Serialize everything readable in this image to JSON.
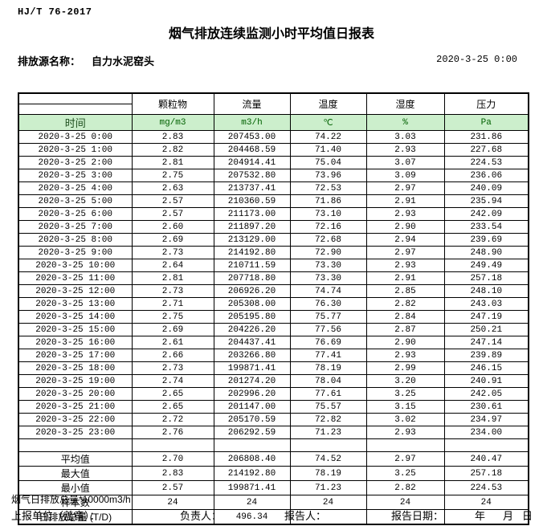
{
  "page": {
    "standard_code": "HJ/T  76-2017",
    "title": "烟气排放连续监测小时平均值日报表",
    "source_label": "排放源名称：",
    "source_name": "自力水泥窑头",
    "datetime": "2020-3-25 0:00"
  },
  "colors": {
    "units_row_bg": "#ccefcc",
    "units_row_text": "#006100",
    "border": "#000000"
  },
  "table": {
    "time_header": "时间",
    "columns": [
      {
        "label": "颗粒物",
        "unit": "mg/m3"
      },
      {
        "label": "流量",
        "unit": "m3/h"
      },
      {
        "label": "温度",
        "unit": "℃"
      },
      {
        "label": "湿度",
        "unit": "%"
      },
      {
        "label": "压力",
        "unit": "Pa"
      }
    ],
    "rows": [
      {
        "time": "2020-3-25 0:00",
        "values": [
          "2.83",
          "207453.00",
          "74.22",
          "3.03",
          "231.86"
        ]
      },
      {
        "time": "2020-3-25 1:00",
        "values": [
          "2.82",
          "204468.59",
          "71.40",
          "2.93",
          "227.68"
        ]
      },
      {
        "time": "2020-3-25 2:00",
        "values": [
          "2.81",
          "204914.41",
          "75.04",
          "3.07",
          "224.53"
        ]
      },
      {
        "time": "2020-3-25 3:00",
        "values": [
          "2.75",
          "207532.80",
          "73.96",
          "3.09",
          "236.06"
        ]
      },
      {
        "time": "2020-3-25 4:00",
        "values": [
          "2.63",
          "213737.41",
          "72.53",
          "2.97",
          "240.09"
        ]
      },
      {
        "time": "2020-3-25 5:00",
        "values": [
          "2.57",
          "210360.59",
          "71.86",
          "2.91",
          "235.94"
        ]
      },
      {
        "time": "2020-3-25 6:00",
        "values": [
          "2.57",
          "211173.00",
          "73.10",
          "2.93",
          "242.09"
        ]
      },
      {
        "time": "2020-3-25 7:00",
        "values": [
          "2.60",
          "211897.20",
          "72.16",
          "2.90",
          "233.54"
        ]
      },
      {
        "time": "2020-3-25 8:00",
        "values": [
          "2.69",
          "213129.00",
          "72.68",
          "2.94",
          "239.69"
        ]
      },
      {
        "time": "2020-3-25 9:00",
        "values": [
          "2.73",
          "214192.80",
          "72.90",
          "2.97",
          "248.90"
        ]
      },
      {
        "time": "2020-3-25 10:00",
        "values": [
          "2.64",
          "210711.59",
          "73.30",
          "2.93",
          "249.49"
        ]
      },
      {
        "time": "2020-3-25 11:00",
        "values": [
          "2.81",
          "207718.80",
          "73.30",
          "2.91",
          "257.18"
        ]
      },
      {
        "time": "2020-3-25 12:00",
        "values": [
          "2.73",
          "206926.20",
          "74.74",
          "2.85",
          "248.10"
        ]
      },
      {
        "time": "2020-3-25 13:00",
        "values": [
          "2.71",
          "205308.00",
          "76.30",
          "2.82",
          "243.03"
        ]
      },
      {
        "time": "2020-3-25 14:00",
        "values": [
          "2.75",
          "205195.80",
          "75.77",
          "2.84",
          "247.19"
        ]
      },
      {
        "time": "2020-3-25 15:00",
        "values": [
          "2.69",
          "204226.20",
          "77.56",
          "2.87",
          "250.21"
        ]
      },
      {
        "time": "2020-3-25 16:00",
        "values": [
          "2.61",
          "204437.41",
          "76.69",
          "2.90",
          "247.14"
        ]
      },
      {
        "time": "2020-3-25 17:00",
        "values": [
          "2.66",
          "203266.80",
          "77.41",
          "2.93",
          "239.89"
        ]
      },
      {
        "time": "2020-3-25 18:00",
        "values": [
          "2.73",
          "199871.41",
          "78.19",
          "2.99",
          "246.15"
        ]
      },
      {
        "time": "2020-3-25 19:00",
        "values": [
          "2.74",
          "201274.20",
          "78.04",
          "3.20",
          "240.91"
        ]
      },
      {
        "time": "2020-3-25 20:00",
        "values": [
          "2.65",
          "202996.20",
          "77.61",
          "3.25",
          "242.05"
        ]
      },
      {
        "time": "2020-3-25 21:00",
        "values": [
          "2.65",
          "201147.00",
          "75.57",
          "3.15",
          "230.61"
        ]
      },
      {
        "time": "2020-3-25 22:00",
        "values": [
          "2.72",
          "205170.59",
          "72.82",
          "3.02",
          "234.97"
        ]
      },
      {
        "time": "2020-3-25 23:00",
        "values": [
          "2.76",
          "206292.59",
          "71.23",
          "2.93",
          "234.00"
        ]
      }
    ],
    "summary": [
      {
        "label": "平均值",
        "values": [
          "2.70",
          "206808.40",
          "74.52",
          "2.97",
          "240.47"
        ]
      },
      {
        "label": "最大值",
        "values": [
          "2.83",
          "214192.80",
          "78.19",
          "3.25",
          "257.18"
        ]
      },
      {
        "label": "最小值",
        "values": [
          "2.57",
          "199871.41",
          "71.23",
          "2.82",
          "224.53"
        ]
      },
      {
        "label": "样本数",
        "values": [
          "24",
          "24",
          "24",
          "24",
          "24"
        ]
      },
      {
        "label": "日排放总量 (T/D)",
        "values": [
          "",
          "496.34",
          "",
          "",
          ""
        ]
      }
    ]
  },
  "footer": {
    "note": "烟气日排放总量*10000m3/h",
    "report_unit_label": "上报单位（盖章）：",
    "responsible_label": "负责人：",
    "reporter_label": "报告人：",
    "report_date_label": "报告日期：",
    "year_label": "年",
    "month_label": "月",
    "day_label": "日"
  }
}
